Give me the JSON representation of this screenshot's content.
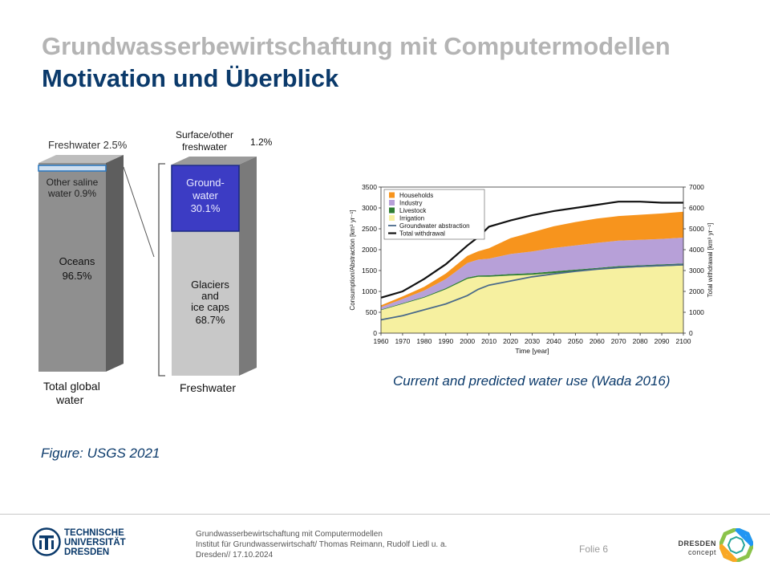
{
  "header": {
    "title": "Grundwasserbewirtschaftung mit Computermodellen",
    "subtitle": "Motivation und Überblick"
  },
  "water_figure": {
    "freshwater_pct_label": "Freshwater 2.5%",
    "other_saline_line1": "Other saline",
    "other_saline_line2": "water 0.9%",
    "oceans_line1": "Oceans",
    "oceans_line2": "96.5%",
    "total_line1": "Total global",
    "total_line2": "water",
    "surface_line1": "Surface/other",
    "surface_line2": "freshwater",
    "surface_pct": "1.2%",
    "ground_line1": "Ground-",
    "ground_line2": "water",
    "ground_line3": "30.1%",
    "glaciers_line1": "Glaciers",
    "glaciers_line2": "and",
    "glaciers_line3": "ice caps",
    "glaciers_line4": "68.7%",
    "freshwater_label": "Freshwater",
    "colors": {
      "ocean": "#8f8f8f",
      "fresh": "#c8c8c8",
      "groundwater": "#3c3cc4"
    }
  },
  "figure_caption": "Figure: USGS 2021",
  "chart_caption": "Current and predicted water use (Wada 2016)",
  "chart_data": {
    "type": "area",
    "xlabel": "Time [year]",
    "ylabel_left": "Consumption/Abstraction [km³ yr⁻¹]",
    "ylabel_right": "Total withdrawal [km³ yr⁻¹]",
    "x": [
      1960,
      1970,
      1980,
      1990,
      2000,
      2005,
      2010,
      2020,
      2030,
      2040,
      2050,
      2060,
      2070,
      2080,
      2090,
      2100
    ],
    "xticks": [
      "1960",
      "1970",
      "1980",
      "1990",
      "2000",
      "2010",
      "2020",
      "2030",
      "2040",
      "2050",
      "2060",
      "2070",
      "2080",
      "2090",
      "2100"
    ],
    "ylim_left": [
      0,
      3500
    ],
    "yticks_left": [
      "0",
      "500",
      "1000",
      "1500",
      "2000",
      "2500",
      "3000",
      "3500"
    ],
    "ylim_right": [
      0,
      7000
    ],
    "yticks_right": [
      "0",
      "1000",
      "2000",
      "3000",
      "4000",
      "5000",
      "6000",
      "7000"
    ],
    "legend": [
      "Households",
      "Industry",
      "Livestock",
      "Irrigation",
      "Groundwater abstraction",
      "Total withdrawal"
    ],
    "legend_placement": "top-left",
    "series": [
      {
        "name": "Irrigation",
        "color": "#f6f0a0",
        "values": [
          550,
          700,
          850,
          1050,
          1300,
          1350,
          1350,
          1380,
          1400,
          1440,
          1480,
          1520,
          1560,
          1580,
          1600,
          1620
        ]
      },
      {
        "name": "Livestock",
        "color": "#2e7d32",
        "values": [
          15,
          18,
          22,
          26,
          30,
          32,
          34,
          36,
          38,
          40,
          42,
          44,
          46,
          46,
          48,
          48
        ]
      },
      {
        "name": "Industry",
        "color": "#b7a0d8",
        "values": [
          60,
          100,
          150,
          220,
          350,
          380,
          400,
          480,
          520,
          560,
          580,
          600,
          610,
          610,
          610,
          620
        ]
      },
      {
        "name": "Households",
        "color": "#f7941d",
        "values": [
          40,
          60,
          90,
          130,
          170,
          200,
          250,
          380,
          460,
          520,
          560,
          580,
          590,
          600,
          610,
          620
        ]
      },
      {
        "name": "Groundwater abstraction",
        "color": "#4a6a8a",
        "axis": "left",
        "values": [
          320,
          420,
          560,
          700,
          900,
          1050,
          1150,
          1250,
          1350,
          1420,
          1480,
          1530,
          1570,
          1600,
          1620,
          1640
        ]
      },
      {
        "name": "Total withdrawal",
        "color": "#111111",
        "axis": "right",
        "values": [
          1700,
          2000,
          2600,
          3300,
          4200,
          4600,
          5100,
          5400,
          5650,
          5850,
          6000,
          6150,
          6300,
          6300,
          6250,
          6250
        ]
      }
    ]
  },
  "footer": {
    "logo_line1": "TECHNISCHE",
    "logo_line2": "UNIVERSITÄT",
    "logo_line3": "DRESDEN",
    "text_line1": "Grundwasserbewirtschaftung mit Computermodellen",
    "text_line2": "Institut für Grundwasserwirtschaft/ Thomas Reimann, Rudolf Liedl u. a.",
    "text_line3": "Dresden// 17.10.2024",
    "slide_number": "Folie 6",
    "partner_line1": "DRESDEN",
    "partner_line2": "concept"
  }
}
